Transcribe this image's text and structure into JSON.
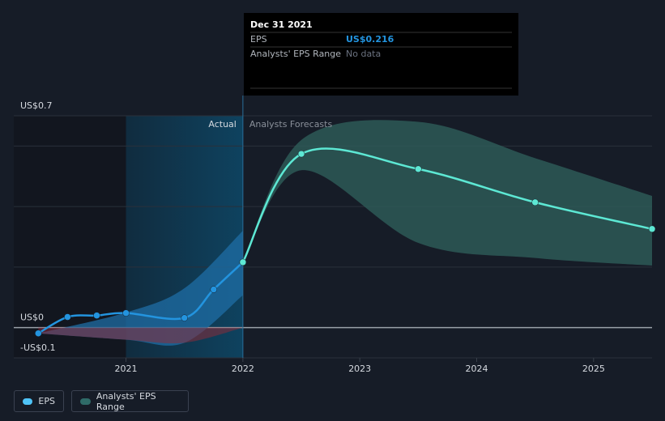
{
  "chart_data": {
    "type": "line",
    "xlim": [
      2020.04,
      2025.5
    ],
    "xticks": [
      2021,
      2022,
      2023,
      2024,
      2025
    ],
    "ylim": [
      -0.1,
      0.7
    ],
    "yticks": [
      {
        "value": 0.7,
        "label": "US$0.7"
      },
      {
        "value": 0,
        "label": "US$0"
      },
      {
        "value": -0.1,
        "label": "-US$0.1"
      }
    ],
    "minor_yticks": [
      0.2,
      0.4,
      0.6
    ],
    "grid": true,
    "forecast_start": 2022,
    "highlight": [
      2021,
      2022
    ],
    "actual_label": "Actual",
    "forecast_label": "Analysts Forecasts",
    "series": [
      {
        "name": "EPS",
        "color": "#2394df",
        "x": [
          2020.25,
          2020.5,
          2020.75,
          2021,
          2021.5,
          2021.75,
          2022
        ],
        "values": [
          -0.019,
          0.035,
          0.04,
          0.048,
          0.032,
          0.126,
          0.216
        ]
      },
      {
        "color": "#5de8d4",
        "x": [
          2022,
          2022.5,
          2023.5,
          2024.5,
          2025.5
        ],
        "values": [
          0.216,
          0.574,
          0.524,
          0.414,
          0.326
        ]
      }
    ],
    "range": {
      "name": "Analysts' EPS Range",
      "legend_color": "#2f6b68",
      "segments": [
        {
          "color": "#1f6da6",
          "lower_color": "#8a2b3a",
          "x": [
            2020.25,
            2021,
            2021.5,
            2022
          ],
          "upper": [
            -0.019,
            0.05,
            0.13,
            0.32
          ],
          "lower": [
            -0.019,
            -0.04,
            -0.05,
            0.107
          ]
        },
        {
          "color": "#2e5e5a",
          "x": [
            2022,
            2022.5,
            2023.5,
            2024.5,
            2025.5
          ],
          "upper": [
            0.216,
            0.62,
            0.68,
            0.56,
            0.435
          ],
          "lower": [
            0.216,
            0.52,
            0.28,
            0.23,
            0.205
          ]
        }
      ]
    },
    "tooltip": {
      "date": "Dec 31 2021",
      "rows": [
        {
          "label": "EPS",
          "value": "US$0.216",
          "color": "#2394df"
        },
        {
          "label": "Analysts' EPS Range",
          "value": "No data",
          "color": "#6b7280"
        }
      ]
    }
  }
}
